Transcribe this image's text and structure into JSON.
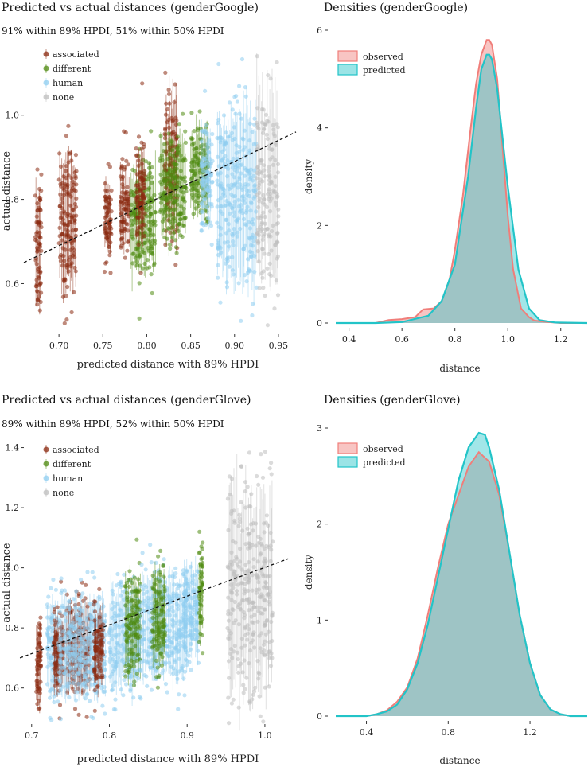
{
  "panels": [
    {
      "title": "Predicted vs actual distances (genderGoogle)",
      "subtitle": "91% within 89% HPDI, 51% within 50% HPDI"
    },
    {
      "title": "Densities (genderGoogle)"
    },
    {
      "title": "Predicted vs actual distances (genderGlove)",
      "subtitle": "89% within 89% HPDI, 52% within 50% HPDI"
    },
    {
      "title": "Densities (genderGlove)"
    }
  ],
  "colors": {
    "associated": "#8b2a10",
    "different": "#4f8a10",
    "human": "#8fcdf0",
    "none": "#bdbdbd",
    "observed": "#f07e7a",
    "predicted": "#22c4c8",
    "overlap": "#8bbdb8"
  },
  "chart_data": [
    {
      "type": "scatter",
      "title": "Predicted vs actual distances (genderGoogle)",
      "subtitle": "91% within 89% HPDI, 51% within 50% HPDI",
      "xlabel": "predicted distance with 89% HPDI",
      "ylabel": "actual distance",
      "xlim": [
        0.66,
        0.97
      ],
      "ylim": [
        0.48,
        1.16
      ],
      "xticks": [
        "0.70",
        "0.75",
        "0.80",
        "0.85",
        "0.90",
        "0.95"
      ],
      "yticks": [
        "0.6",
        "0.8",
        "1.0"
      ],
      "legend": [
        "associated",
        "different",
        "human",
        "none"
      ],
      "legend_position": "top-left",
      "fit_line": {
        "x": [
          0.66,
          0.97
        ],
        "y": [
          0.65,
          0.96
        ]
      },
      "clusters": [
        {
          "category": "associated",
          "x": [
            0.673,
            0.68
          ],
          "y": [
            0.5,
            0.86
          ]
        },
        {
          "category": "associated",
          "x": [
            0.7,
            0.72
          ],
          "y": [
            0.54,
            0.96
          ]
        },
        {
          "category": "associated",
          "x": [
            0.752,
            0.76
          ],
          "y": [
            0.65,
            0.87
          ]
        },
        {
          "category": "associated",
          "x": [
            0.77,
            0.78
          ],
          "y": [
            0.65,
            0.9
          ]
        },
        {
          "category": "different",
          "x": [
            0.782,
            0.81
          ],
          "y": [
            0.59,
            0.92
          ]
        },
        {
          "category": "associated",
          "x": [
            0.788,
            0.798
          ],
          "y": [
            0.66,
            0.96
          ]
        },
        {
          "category": "associated",
          "x": [
            0.82,
            0.835
          ],
          "y": [
            0.66,
            1.12
          ]
        },
        {
          "category": "different",
          "x": [
            0.815,
            0.845
          ],
          "y": [
            0.68,
            0.98
          ]
        },
        {
          "category": "different",
          "x": [
            0.85,
            0.87
          ],
          "y": [
            0.74,
            1.0
          ]
        },
        {
          "category": "human",
          "x": [
            0.862,
            0.875
          ],
          "y": [
            0.7,
            1.0
          ]
        },
        {
          "category": "human",
          "x": [
            0.88,
            0.925
          ],
          "y": [
            0.56,
            1.06
          ]
        },
        {
          "category": "none",
          "x": [
            0.925,
            0.95
          ],
          "y": [
            0.53,
            1.12
          ]
        }
      ]
    },
    {
      "type": "area",
      "title": "Densities (genderGoogle)",
      "xlabel": "distance",
      "ylabel": "density",
      "xlim": [
        0.35,
        1.3
      ],
      "ylim": [
        0,
        6
      ],
      "xticks": [
        "0.4",
        "0.6",
        "0.8",
        "1.0",
        "1.2"
      ],
      "yticks": [
        "0",
        "2",
        "4",
        "6"
      ],
      "legend": [
        "observed",
        "predicted"
      ],
      "legend_position": "top-left",
      "series": [
        {
          "name": "observed",
          "x": [
            0.35,
            0.5,
            0.55,
            0.6,
            0.65,
            0.68,
            0.72,
            0.75,
            0.78,
            0.8,
            0.83,
            0.86,
            0.88,
            0.9,
            0.92,
            0.93,
            0.94,
            0.96,
            0.98,
            1.0,
            1.02,
            1.05,
            1.08,
            1.1,
            1.15,
            1.2,
            1.3
          ],
          "y": [
            0,
            0,
            0.06,
            0.08,
            0.12,
            0.28,
            0.3,
            0.45,
            0.9,
            1.5,
            2.6,
            4.0,
            4.9,
            5.5,
            5.8,
            5.8,
            5.7,
            5.0,
            3.6,
            2.2,
            1.1,
            0.3,
            0.12,
            0.05,
            0.02,
            0,
            0
          ]
        },
        {
          "name": "predicted",
          "x": [
            0.35,
            0.5,
            0.6,
            0.7,
            0.75,
            0.8,
            0.85,
            0.88,
            0.9,
            0.92,
            0.93,
            0.94,
            0.96,
            1.0,
            1.04,
            1.08,
            1.12,
            1.18,
            1.3
          ],
          "y": [
            0,
            0,
            0.02,
            0.15,
            0.45,
            1.2,
            3.0,
            4.4,
            5.2,
            5.5,
            5.5,
            5.4,
            4.8,
            2.8,
            1.1,
            0.3,
            0.06,
            0.01,
            0
          ]
        }
      ]
    },
    {
      "type": "scatter",
      "title": "Predicted vs actual distances (genderGlove)",
      "subtitle": "89% within 89% HPDI, 52% within 50% HPDI",
      "xlabel": "predicted distance with 89% HPDI",
      "ylabel": "actual distance",
      "xlim": [
        0.69,
        1.04
      ],
      "ylim": [
        0.48,
        1.42
      ],
      "xticks": [
        "0.7",
        "0.8",
        "0.9",
        "1.0"
      ],
      "yticks": [
        "0.6",
        "0.8",
        "1.0",
        "1.2",
        "1.4"
      ],
      "legend": [
        "associated",
        "different",
        "human",
        "none"
      ],
      "legend_position": "top-left",
      "fit_line": {
        "x": [
          0.685,
          1.03
        ],
        "y": [
          0.7,
          1.03
        ]
      },
      "clusters": [
        {
          "category": "associated",
          "x": [
            0.706,
            0.712
          ],
          "y": [
            0.5,
            0.87
          ]
        },
        {
          "category": "human",
          "x": [
            0.72,
            0.735
          ],
          "y": [
            0.54,
            0.95
          ]
        },
        {
          "category": "associated",
          "x": [
            0.728,
            0.742
          ],
          "y": [
            0.56,
            0.88
          ]
        },
        {
          "category": "associated",
          "x": [
            0.745,
            0.775
          ],
          "y": [
            0.55,
            0.92
          ]
        },
        {
          "category": "human",
          "x": [
            0.735,
            0.795
          ],
          "y": [
            0.52,
            0.95
          ]
        },
        {
          "category": "associated",
          "x": [
            0.78,
            0.792
          ],
          "y": [
            0.57,
            0.9
          ]
        },
        {
          "category": "human",
          "x": [
            0.8,
            0.84
          ],
          "y": [
            0.54,
            0.98
          ]
        },
        {
          "category": "different",
          "x": [
            0.82,
            0.84
          ],
          "y": [
            0.6,
            1.02
          ]
        },
        {
          "category": "human",
          "x": [
            0.84,
            0.9
          ],
          "y": [
            0.58,
            1.02
          ]
        },
        {
          "category": "different",
          "x": [
            0.855,
            0.872
          ],
          "y": [
            0.62,
            1.03
          ]
        },
        {
          "category": "human",
          "x": [
            0.895,
            0.915
          ],
          "y": [
            0.66,
            1.06
          ]
        },
        {
          "category": "different",
          "x": [
            0.915,
            0.92
          ],
          "y": [
            0.72,
            1.1
          ]
        },
        {
          "category": "none",
          "x": [
            0.952,
            1.01
          ],
          "y": [
            0.5,
            1.37
          ]
        }
      ]
    },
    {
      "type": "area",
      "title": "Densities (genderGlove)",
      "xlabel": "distance",
      "ylabel": "density",
      "xlim": [
        0.25,
        1.48
      ],
      "ylim": [
        0,
        3
      ],
      "xticks": [
        "0.4",
        "0.8",
        "1.2"
      ],
      "yticks": [
        "0",
        "1",
        "2",
        "3"
      ],
      "legend": [
        "observed",
        "predicted"
      ],
      "legend_position": "top-left",
      "series": [
        {
          "name": "observed",
          "x": [
            0.25,
            0.4,
            0.45,
            0.5,
            0.55,
            0.6,
            0.65,
            0.7,
            0.75,
            0.8,
            0.85,
            0.9,
            0.95,
            1.0,
            1.05,
            1.1,
            1.15,
            1.2,
            1.25,
            1.3,
            1.35,
            1.4,
            1.48
          ],
          "y": [
            0,
            0,
            0.02,
            0.06,
            0.15,
            0.3,
            0.6,
            1.05,
            1.55,
            2.0,
            2.3,
            2.6,
            2.75,
            2.65,
            2.3,
            1.7,
            1.05,
            0.55,
            0.22,
            0.07,
            0.02,
            0,
            0
          ]
        },
        {
          "name": "predicted",
          "x": [
            0.25,
            0.4,
            0.45,
            0.5,
            0.55,
            0.6,
            0.65,
            0.7,
            0.75,
            0.8,
            0.85,
            0.9,
            0.95,
            0.98,
            1.0,
            1.05,
            1.1,
            1.15,
            1.2,
            1.25,
            1.3,
            1.35,
            1.4,
            1.48
          ],
          "y": [
            0,
            0,
            0.02,
            0.05,
            0.12,
            0.28,
            0.55,
            0.95,
            1.45,
            1.95,
            2.45,
            2.8,
            2.95,
            2.93,
            2.8,
            2.35,
            1.7,
            1.05,
            0.55,
            0.22,
            0.07,
            0.02,
            0,
            0
          ]
        }
      ]
    }
  ]
}
